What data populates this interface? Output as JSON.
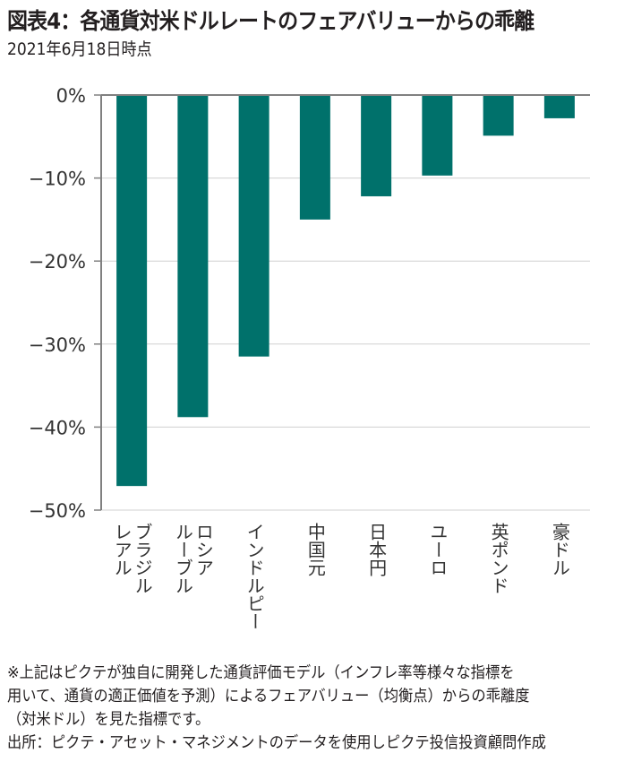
{
  "header": {
    "title": "図表4：各通貨対米ドルレートのフェアバリューからの乖離",
    "subtitle": "2021年6月18日時点"
  },
  "chart_data": {
    "type": "bar",
    "title": "図表4：各通貨対米ドルレートのフェアバリューからの乖離",
    "subtitle": "2021年6月18日時点",
    "xlabel": "",
    "ylabel": "",
    "ylim": [
      -50,
      0
    ],
    "yticks": [
      0,
      -10,
      -20,
      -30,
      -40,
      -50
    ],
    "ytick_labels": [
      "0%",
      "−10%",
      "−20%",
      "−30%",
      "−40%",
      "−50%"
    ],
    "grid": true,
    "bar_color": "#00716b",
    "categories": [
      "ブラジルレアル",
      "ロシアルーブル",
      "インドルピー",
      "中国元",
      "日本円",
      "ユーロ",
      "英ポンド",
      "豪ドル"
    ],
    "category_label_lines": [
      [
        "ブラジル",
        "レアル"
      ],
      [
        "ロシア",
        "ルーブル"
      ],
      [
        "インドルピー"
      ],
      [
        "中国元"
      ],
      [
        "日本円"
      ],
      [
        "ユーロ"
      ],
      [
        "英ポンド"
      ],
      [
        "豪ドル"
      ]
    ],
    "values": [
      -47.1,
      -38.8,
      -31.5,
      -15.0,
      -12.2,
      -9.7,
      -4.9,
      -2.8
    ],
    "unit": "%"
  },
  "footnote": {
    "lines": [
      "※上記はピクテが独自に開発した通貨評価モデル（インフレ率等様々な指標を",
      "用いて、通貨の適正価値を予測）によるフェアバリュー（均衡点）からの乖離度",
      "（対米ドル）を見た指標です。",
      "出所：ピクテ・アセット・マネジメントのデータを使用しピクテ投信投資顧問作成"
    ]
  }
}
